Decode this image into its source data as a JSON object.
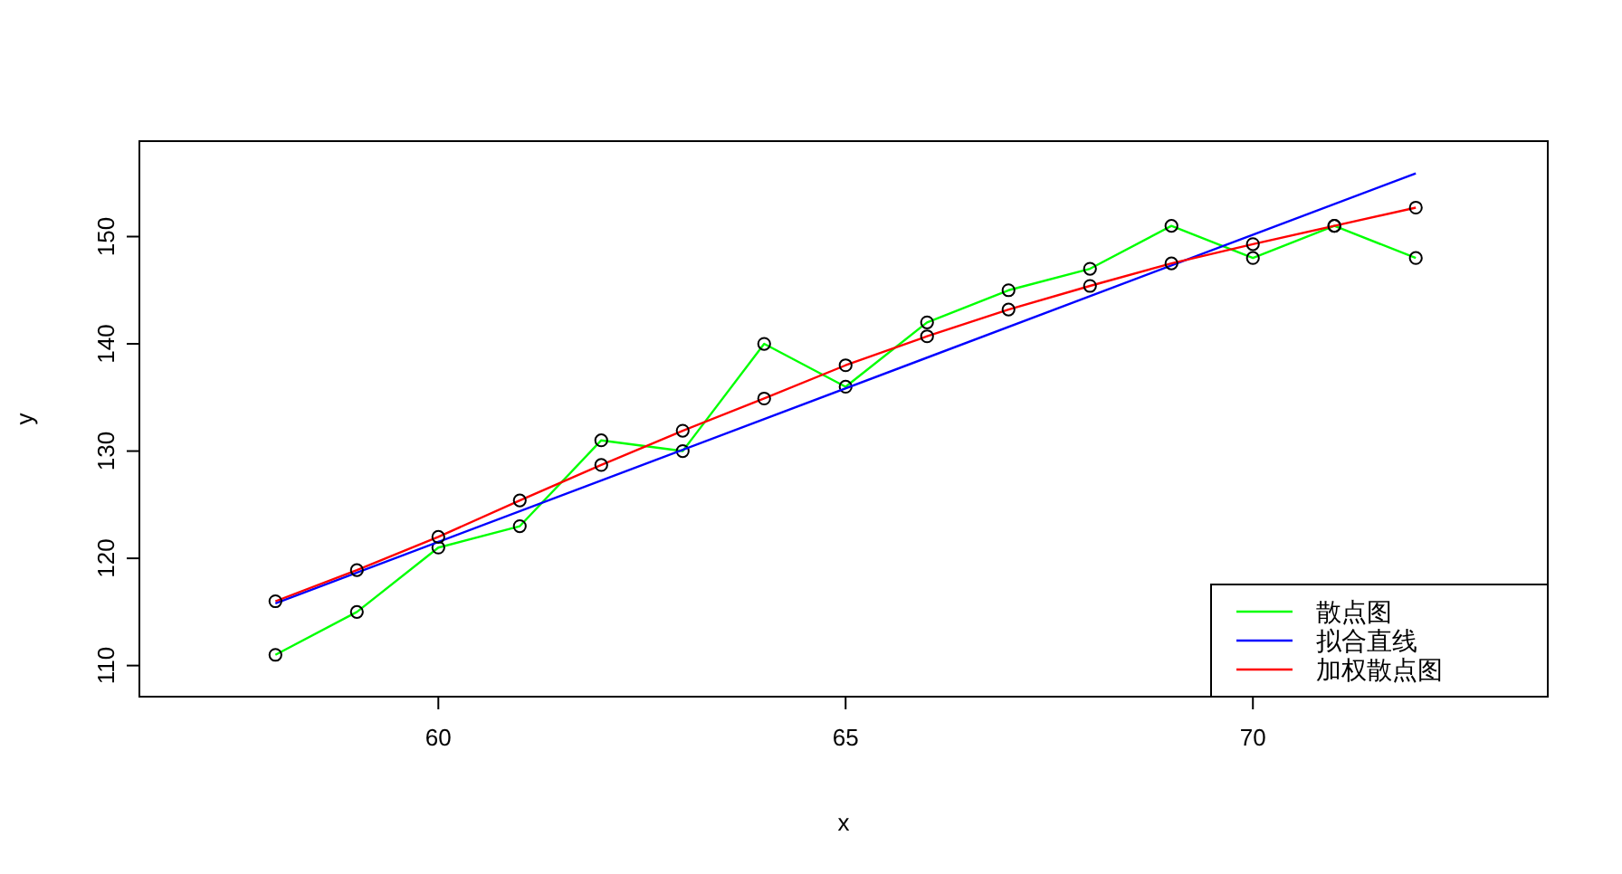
{
  "chart_data": {
    "type": "line",
    "xlabel": "x",
    "ylabel": "y",
    "xlim": [
      56.33,
      73.62
    ],
    "ylim": [
      107.1,
      158.9
    ],
    "xticks": [
      60,
      65,
      70
    ],
    "yticks": [
      110,
      120,
      130,
      140,
      150
    ],
    "legend": "bottom right",
    "grid": false,
    "series": [
      {
        "name": "散点图",
        "color": "#00ff00",
        "marker": "circle",
        "x": [
          58,
          59,
          60,
          61,
          62,
          63,
          64,
          65,
          66,
          67,
          68,
          69,
          70,
          71,
          72
        ],
        "values": [
          111,
          115,
          121,
          123,
          131,
          130,
          140,
          136,
          142,
          145,
          147,
          151,
          148,
          151,
          148
        ]
      },
      {
        "name": "拟合直线",
        "color": "#0000ff",
        "marker": "none",
        "x": [
          58,
          72
        ],
        "values": [
          115.8,
          155.9
        ]
      },
      {
        "name": "加权散点图",
        "color": "#ff0000",
        "marker": "circle",
        "x": [
          58,
          59,
          60,
          61,
          62,
          63,
          64,
          65,
          66,
          67,
          68,
          69,
          70,
          71,
          72
        ],
        "values": [
          116,
          118.9,
          122,
          125.4,
          128.7,
          131.9,
          134.9,
          138,
          140.7,
          143.2,
          145.4,
          147.5,
          149.3,
          151,
          152.7
        ]
      }
    ]
  }
}
